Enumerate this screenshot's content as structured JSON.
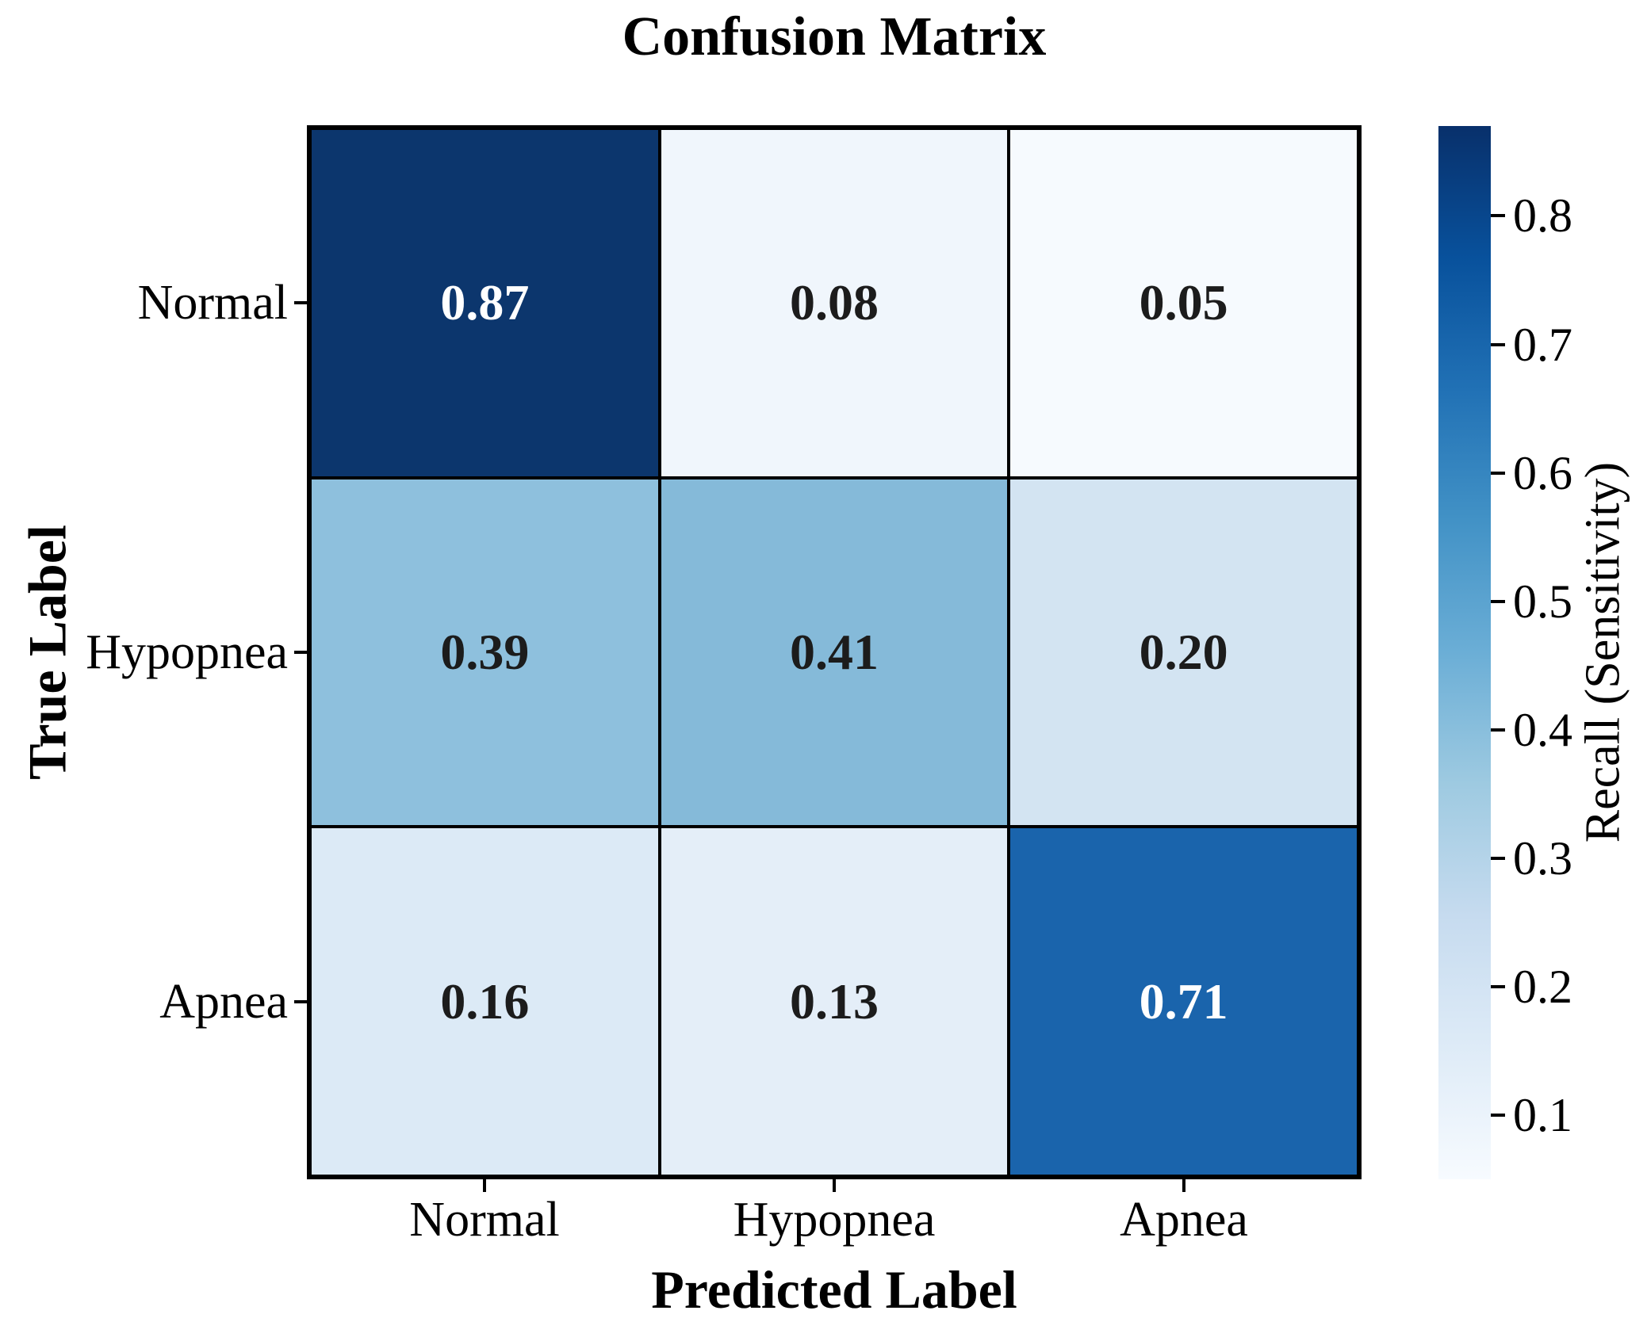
{
  "title": "Confusion Matrix",
  "x_axis": {
    "label": "Predicted Label",
    "ticks": [
      "Normal",
      "Hypopnea",
      "Apnea"
    ]
  },
  "y_axis": {
    "label": "True Label",
    "ticks": [
      "Normal",
      "Hypopnea",
      "Apnea"
    ]
  },
  "cells": [
    {
      "row": "Normal",
      "col": "Normal",
      "label": "0.87",
      "bg": "#0C366D",
      "fg": "#FFFFFF"
    },
    {
      "row": "Normal",
      "col": "Hypopnea",
      "label": "0.08",
      "bg": "#F0F6FC",
      "fg": "#1C1C1C"
    },
    {
      "row": "Normal",
      "col": "Apnea",
      "label": "0.05",
      "bg": "#F6FAFE",
      "fg": "#1C1C1C"
    },
    {
      "row": "Hypopnea",
      "col": "Normal",
      "label": "0.39",
      "bg": "#8EC0DD",
      "fg": "#1C1C1C"
    },
    {
      "row": "Hypopnea",
      "col": "Hypopnea",
      "label": "0.41",
      "bg": "#85BAD9",
      "fg": "#1C1C1C"
    },
    {
      "row": "Hypopnea",
      "col": "Apnea",
      "label": "0.20",
      "bg": "#D3E4F2",
      "fg": "#1C1C1C"
    },
    {
      "row": "Apnea",
      "col": "Normal",
      "label": "0.16",
      "bg": "#DCEAF6",
      "fg": "#1C1C1C"
    },
    {
      "row": "Apnea",
      "col": "Hypopnea",
      "label": "0.13",
      "bg": "#E4EEF8",
      "fg": "#1C1C1C"
    },
    {
      "row": "Apnea",
      "col": "Apnea",
      "label": "0.71",
      "bg": "#1A64AC",
      "fg": "#FFFFFF"
    }
  ],
  "colorbar": {
    "label": "Recall (Sensitivity)",
    "tick_labels": [
      "0.8",
      "0.7",
      "0.6",
      "0.5",
      "0.4",
      "0.3",
      "0.2",
      "0.1"
    ],
    "tick_values": [
      0.8,
      0.7,
      0.6,
      0.5,
      0.4,
      0.3,
      0.2,
      0.1
    ],
    "vmin": 0.05,
    "vmax": 0.87,
    "gradient_stops_bottom_to_top": [
      "#F7FBFF",
      "#DEEBF7",
      "#C6DBEF",
      "#9ECAE1",
      "#6BAED6",
      "#4292C6",
      "#2171B5",
      "#08519C",
      "#08306B"
    ]
  },
  "chart_data": {
    "type": "heatmap",
    "title": "Confusion Matrix",
    "xlabel": "Predicted Label",
    "ylabel": "True Label",
    "x_categories": [
      "Normal",
      "Hypopnea",
      "Apnea"
    ],
    "y_categories": [
      "Normal",
      "Hypopnea",
      "Apnea"
    ],
    "matrix_rows_true_by_pred": [
      [
        0.87,
        0.08,
        0.05
      ],
      [
        0.39,
        0.41,
        0.2
      ],
      [
        0.16,
        0.13,
        0.71
      ]
    ],
    "cell_text_format": "2 decimals",
    "colormap": "Blues",
    "colorbar_label": "Recall (Sensitivity)",
    "colorbar_ticks": [
      0.1,
      0.2,
      0.3,
      0.4,
      0.5,
      0.6,
      0.7,
      0.8
    ],
    "color_range": [
      0.05,
      0.87
    ],
    "grid": false,
    "legend_position": "colorbar-right"
  }
}
